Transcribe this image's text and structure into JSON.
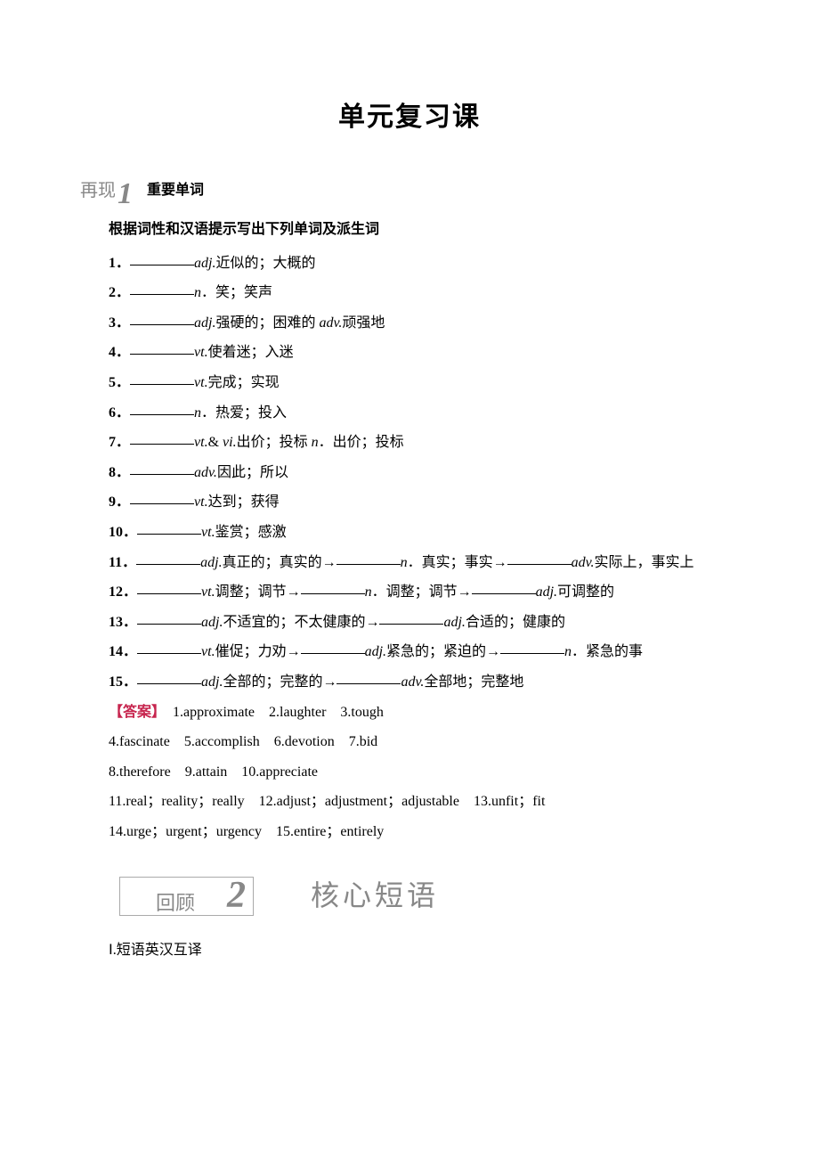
{
  "page_title": "单元复习课",
  "section1": {
    "label_prefix": "再现",
    "label_num": "1",
    "subtitle": "重要单词",
    "instruction": "根据词性和汉语提示写出下列单词及派生词",
    "items": [
      {
        "n": "1",
        "segs": [
          {
            "t": "pos",
            "v": "adj."
          },
          {
            "t": "txt",
            "v": "近似的；大概的"
          }
        ]
      },
      {
        "n": "2",
        "segs": [
          {
            "t": "pos",
            "v": "n"
          },
          {
            "t": "txt",
            "v": "．笑；笑声"
          }
        ]
      },
      {
        "n": "3",
        "segs": [
          {
            "t": "pos",
            "v": "adj."
          },
          {
            "t": "txt",
            "v": "强硬的；困难的 "
          },
          {
            "t": "pos",
            "v": "adv."
          },
          {
            "t": "txt",
            "v": "顽强地"
          }
        ]
      },
      {
        "n": "4",
        "segs": [
          {
            "t": "pos",
            "v": "vt."
          },
          {
            "t": "txt",
            "v": "使着迷；入迷"
          }
        ]
      },
      {
        "n": "5",
        "segs": [
          {
            "t": "pos",
            "v": "vt."
          },
          {
            "t": "txt",
            "v": "完成；实现"
          }
        ]
      },
      {
        "n": "6",
        "segs": [
          {
            "t": "pos",
            "v": "n"
          },
          {
            "t": "txt",
            "v": "．热爱；投入"
          }
        ]
      },
      {
        "n": "7",
        "segs": [
          {
            "t": "pos",
            "v": "vt."
          },
          {
            "t": "txt",
            "v": "& "
          },
          {
            "t": "pos",
            "v": "vi."
          },
          {
            "t": "txt",
            "v": "出价；投标 "
          },
          {
            "t": "pos",
            "v": "n"
          },
          {
            "t": "txt",
            "v": "．出价；投标"
          }
        ]
      },
      {
        "n": "8",
        "segs": [
          {
            "t": "pos",
            "v": "adv."
          },
          {
            "t": "txt",
            "v": "因此；所以"
          }
        ]
      },
      {
        "n": "9",
        "segs": [
          {
            "t": "pos",
            "v": "vt."
          },
          {
            "t": "txt",
            "v": "达到；获得"
          }
        ]
      },
      {
        "n": "10",
        "segs": [
          {
            "t": "pos",
            "v": "vt."
          },
          {
            "t": "txt",
            "v": "鉴赏；感激"
          }
        ]
      },
      {
        "n": "11",
        "segs": [
          {
            "t": "pos",
            "v": "adj."
          },
          {
            "t": "txt",
            "v": "真正的；真实的→"
          },
          {
            "t": "blank"
          },
          {
            "t": "pos",
            "v": "n"
          },
          {
            "t": "txt",
            "v": "．真实；事实→"
          },
          {
            "t": "blank"
          },
          {
            "t": "pos",
            "v": "adv."
          },
          {
            "t": "txt",
            "v": "实际上，事实上"
          }
        ],
        "wrap": true
      },
      {
        "n": "12",
        "segs": [
          {
            "t": "pos",
            "v": "vt."
          },
          {
            "t": "txt",
            "v": "调整；调节→"
          },
          {
            "t": "blank"
          },
          {
            "t": "pos",
            "v": "n"
          },
          {
            "t": "txt",
            "v": "．调整；调节→"
          },
          {
            "t": "blank"
          },
          {
            "t": "pos",
            "v": "adj."
          },
          {
            "t": "txt",
            "v": "可调整的"
          }
        ],
        "wrap": true
      },
      {
        "n": "13",
        "segs": [
          {
            "t": "pos",
            "v": "adj."
          },
          {
            "t": "txt",
            "v": "不适宜的；不太健康的→"
          },
          {
            "t": "blank"
          },
          {
            "t": "pos",
            "v": "adj."
          },
          {
            "t": "txt",
            "v": "合适的；健康的"
          }
        ]
      },
      {
        "n": "14",
        "segs": [
          {
            "t": "pos",
            "v": "vt."
          },
          {
            "t": "txt",
            "v": "催促；力劝→"
          },
          {
            "t": "blank"
          },
          {
            "t": "pos",
            "v": "adj."
          },
          {
            "t": "txt",
            "v": "紧急的；紧迫的→"
          },
          {
            "t": "blank"
          },
          {
            "t": "pos",
            "v": "n"
          },
          {
            "t": "txt",
            "v": "．紧急的事"
          }
        ],
        "wrap": true
      },
      {
        "n": "15",
        "segs": [
          {
            "t": "pos",
            "v": "adj."
          },
          {
            "t": "txt",
            "v": "全部的；完整的→"
          },
          {
            "t": "blank"
          },
          {
            "t": "pos",
            "v": "adv."
          },
          {
            "t": "txt",
            "v": "全部地；完整地"
          }
        ]
      }
    ],
    "answer_label": "【答案】",
    "answers": [
      "1.approximate　2.laughter　3.tough",
      "4.fascinate　5.accomplish　6.devotion　7.bid",
      "8.therefore　9.attain　10.appreciate",
      "11.real；reality；really　12.adjust；adjustment；adjustable　13.unfit；fit",
      "14.urge；urgent；urgency　15.entire；entirely"
    ]
  },
  "section2": {
    "box_prefix": "回顾",
    "box_num": "2",
    "title": "核心短语",
    "sub": "Ⅰ.短语英汉互译"
  },
  "colors": {
    "text": "#000000",
    "gray": "#888888",
    "answer_red": "#c7254e",
    "background": "#ffffff"
  }
}
